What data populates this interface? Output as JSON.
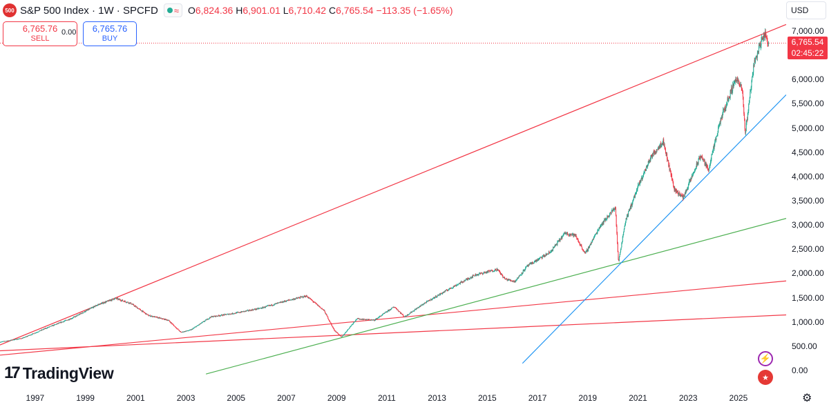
{
  "header": {
    "symbol_badge": "500",
    "title": "S&P 500 Index · 1W · SPCFD",
    "ohlc": {
      "o_label": "O",
      "o": "6,824.36",
      "h_label": "H",
      "h": "6,901.01",
      "l_label": "L",
      "l": "6,710.42",
      "c_label": "C",
      "c": "6,765.54",
      "change": "−113.35 (−1.65%)"
    },
    "wave_icon": "≈"
  },
  "trade": {
    "sell_price": "6,765.76",
    "sell_label": "SELL",
    "spread": "0.00",
    "buy_price": "6,765.76",
    "buy_label": "BUY"
  },
  "currency": "USD",
  "last_price": {
    "value": "6,765.54",
    "countdown": "02:45:22"
  },
  "brand": {
    "logo_text": "TradingView",
    "mark": "17"
  },
  "colors": {
    "up": "#22ab94",
    "down": "#f23645",
    "trend_red": "#f23645",
    "trend_blue": "#2196f3",
    "trend_green": "#4caf50"
  },
  "chart_data": {
    "type": "candlestick",
    "interval": "1W",
    "y_tick_labels": [
      "7,000.00",
      "6,500.00",
      "6,000.00",
      "5,500.00",
      "5,000.00",
      "4,500.00",
      "4,000.00",
      "3,500.00",
      "3,000.00",
      "2,500.00",
      "2,000.00",
      "1,500.00",
      "1,000.00",
      "500.00",
      "0.00"
    ],
    "y_ticks": [
      7000,
      6500,
      6000,
      5500,
      5000,
      4500,
      4000,
      3500,
      3000,
      2500,
      2000,
      1500,
      1000,
      500,
      0
    ],
    "ylim": [
      -300,
      7500
    ],
    "x_tick_labels": [
      "1997",
      "1999",
      "2001",
      "2003",
      "2005",
      "2007",
      "2009",
      "2011",
      "2013",
      "2015",
      "2017",
      "2019",
      "2021",
      "2023",
      "2025"
    ],
    "x_ticks": [
      1997,
      1999,
      2001,
      2003,
      2005,
      2007,
      2009,
      2011,
      2013,
      2015,
      2017,
      2019,
      2021,
      2023,
      2025
    ],
    "xlim": [
      1995.6,
      2026.9
    ],
    "price_path": [
      [
        1995.6,
        600
      ],
      [
        1996.5,
        680
      ],
      [
        1997.5,
        900
      ],
      [
        1998.5,
        1100
      ],
      [
        1999.5,
        1370
      ],
      [
        2000.2,
        1500
      ],
      [
        2000.8,
        1400
      ],
      [
        2001.5,
        1150
      ],
      [
        2002.3,
        1050
      ],
      [
        2002.8,
        800
      ],
      [
        2003.2,
        850
      ],
      [
        2004.0,
        1120
      ],
      [
        2005.0,
        1200
      ],
      [
        2006.0,
        1300
      ],
      [
        2007.0,
        1450
      ],
      [
        2007.8,
        1550
      ],
      [
        2008.5,
        1250
      ],
      [
        2008.9,
        850
      ],
      [
        2009.2,
        700
      ],
      [
        2009.8,
        1080
      ],
      [
        2010.5,
        1050
      ],
      [
        2011.3,
        1330
      ],
      [
        2011.7,
        1120
      ],
      [
        2012.5,
        1400
      ],
      [
        2013.5,
        1700
      ],
      [
        2014.5,
        1980
      ],
      [
        2015.4,
        2100
      ],
      [
        2015.7,
        1900
      ],
      [
        2016.1,
        1850
      ],
      [
        2016.6,
        2170
      ],
      [
        2017.5,
        2450
      ],
      [
        2018.1,
        2850
      ],
      [
        2018.5,
        2800
      ],
      [
        2018.9,
        2420
      ],
      [
        2019.5,
        3000
      ],
      [
        2020.1,
        3380
      ],
      [
        2020.22,
        2240
      ],
      [
        2020.5,
        3100
      ],
      [
        2021.0,
        3800
      ],
      [
        2021.5,
        4400
      ],
      [
        2022.0,
        4750
      ],
      [
        2022.45,
        3750
      ],
      [
        2022.8,
        3580
      ],
      [
        2023.5,
        4450
      ],
      [
        2023.8,
        4150
      ],
      [
        2024.3,
        5200
      ],
      [
        2024.9,
        6050
      ],
      [
        2025.15,
        5800
      ],
      [
        2025.27,
        4900
      ],
      [
        2025.6,
        6300
      ],
      [
        2025.9,
        6800
      ],
      [
        2026.05,
        6950
      ],
      [
        2026.2,
        6765.54
      ]
    ],
    "trend_lines": [
      {
        "color": "red",
        "from": [
          1995.6,
          540
        ],
        "to": [
          2026.9,
          7150
        ]
      },
      {
        "color": "red",
        "from": [
          1995.6,
          330
        ],
        "to": [
          2026.9,
          1860
        ]
      },
      {
        "color": "red",
        "from": [
          1995.6,
          420
        ],
        "to": [
          2026.9,
          1160
        ]
      },
      {
        "color": "green",
        "from": [
          2003.8,
          -60
        ],
        "to": [
          2026.9,
          3150
        ]
      },
      {
        "color": "blue",
        "from": [
          2016.4,
          160
        ],
        "to": [
          2026.9,
          5700
        ]
      }
    ],
    "last_value": 6765.54
  }
}
